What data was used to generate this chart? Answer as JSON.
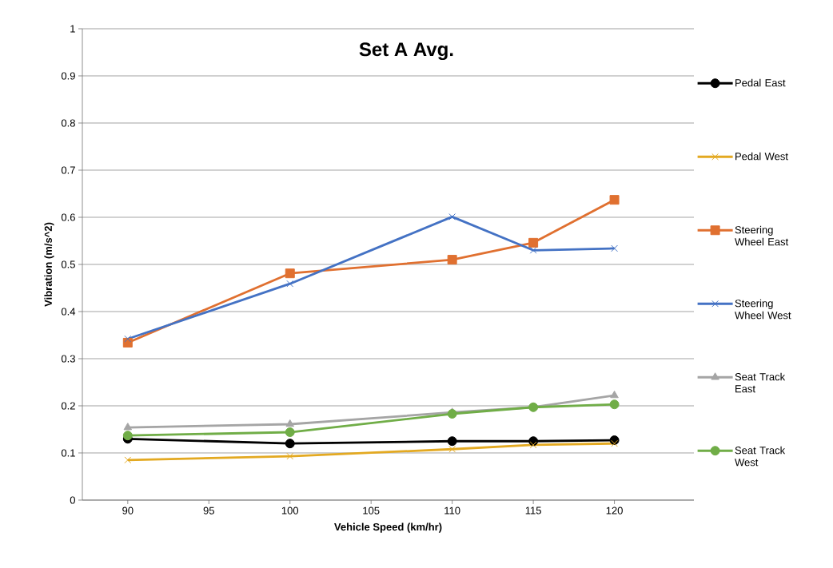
{
  "chart_data": {
    "type": "line",
    "title": "Set A Avg.",
    "xlabel": "Vehicle Speed (km/hr)",
    "ylabel": "Vibration (m/s^2)",
    "x": [
      90,
      100,
      110,
      115,
      120
    ],
    "xlim": [
      87.2,
      124.9
    ],
    "xticks": [
      90,
      95,
      100,
      105,
      110,
      115,
      120
    ],
    "ylim": [
      0,
      1
    ],
    "yticks": [
      0,
      0.1,
      0.2,
      0.3,
      0.4,
      0.5,
      0.6,
      0.7,
      0.8,
      0.9,
      1
    ],
    "grid": "y",
    "legend": "right",
    "line_style": "solid",
    "series": [
      {
        "name": "Pedal East",
        "color": "#000000",
        "marker": "circle",
        "values": [
          0.13,
          0.12,
          0.125,
          0.125,
          0.127
        ]
      },
      {
        "name": "Pedal West",
        "color": "#e3a921",
        "marker": "cross",
        "values": [
          0.085,
          0.093,
          0.108,
          0.117,
          0.12
        ]
      },
      {
        "name": "Steering Wheel East",
        "color": "#e07030",
        "marker": "square",
        "values": [
          0.334,
          0.481,
          0.51,
          0.546,
          0.637
        ]
      },
      {
        "name": "Steering Wheel West",
        "color": "#4472c4",
        "marker": "cross",
        "values": [
          0.342,
          0.459,
          0.601,
          0.53,
          0.534
        ]
      },
      {
        "name": "Seat Track East",
        "color": "#a5a5a5",
        "marker": "triangle",
        "values": [
          0.154,
          0.161,
          0.186,
          0.197,
          0.222
        ]
      },
      {
        "name": "Seat Track West",
        "color": "#70ad47",
        "marker": "circle",
        "values": [
          0.137,
          0.144,
          0.183,
          0.197,
          0.203
        ]
      }
    ]
  }
}
